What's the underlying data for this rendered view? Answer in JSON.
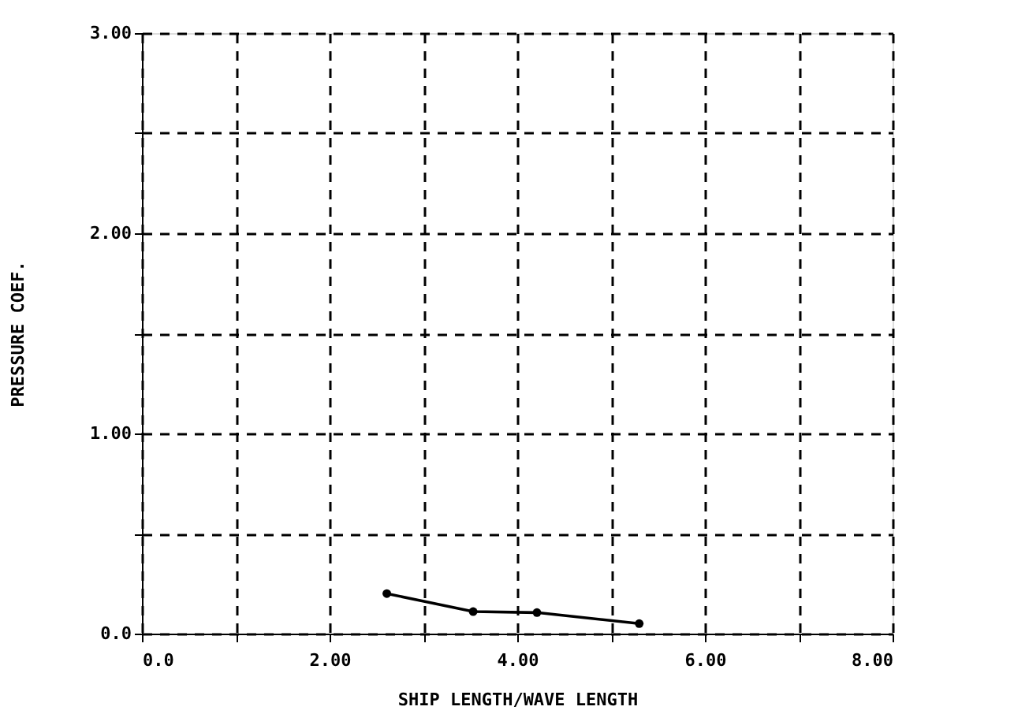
{
  "chart_data": {
    "type": "line",
    "xlabel": "SHIP LENGTH/WAVE LENGTH",
    "ylabel": "PRESSURE COEF.",
    "x": [
      2.61,
      3.53,
      4.21,
      5.3
    ],
    "series": [
      {
        "color": "#000000",
        "values": [
          0.2,
          0.11,
          0.105,
          0.05
        ]
      }
    ],
    "marker": "circle",
    "line_style": "solid",
    "grid": true,
    "xlim": [
      0,
      8
    ],
    "ylim": [
      0,
      3
    ],
    "xticks": [
      {
        "value": 0,
        "label": "0.0"
      },
      {
        "value": 1,
        "label": null
      },
      {
        "value": 2,
        "label": "2.00"
      },
      {
        "value": 3,
        "label": null
      },
      {
        "value": 4,
        "label": "4.00"
      },
      {
        "value": 5,
        "label": null
      },
      {
        "value": 6,
        "label": "6.00"
      },
      {
        "value": 7,
        "label": null
      },
      {
        "value": 8,
        "label": "8.00"
      }
    ],
    "yticks": [
      {
        "value": 0,
        "label": "0.0"
      },
      {
        "value": 0.5,
        "label": null
      },
      {
        "value": 1,
        "label": "1.00"
      },
      {
        "value": 1.5,
        "label": null
      },
      {
        "value": 2,
        "label": "2.00"
      },
      {
        "value": 2.5,
        "label": null
      },
      {
        "value": 3,
        "label": "3.00"
      }
    ]
  }
}
